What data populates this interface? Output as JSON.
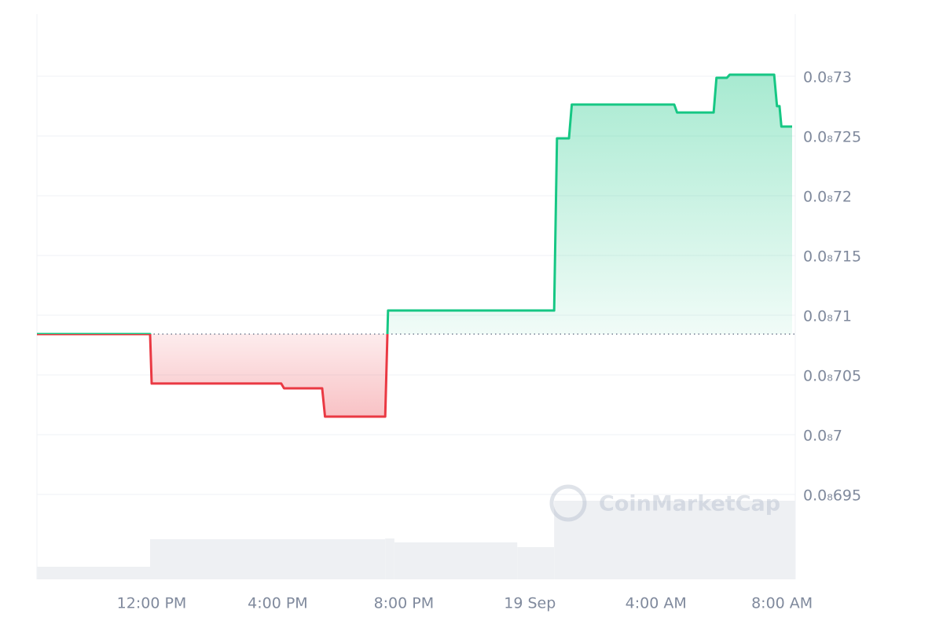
{
  "chart_data": {
    "type": "baseline-line",
    "x": [
      8.36,
      11.95,
      12.0,
      16.11,
      16.2,
      17.41,
      17.5,
      19.41,
      19.5,
      24.77,
      24.86,
      25.24,
      25.33,
      28.58,
      28.67,
      29.83,
      29.92,
      30.25,
      30.34,
      31.75,
      31.84,
      31.92,
      31.98,
      32.32
    ],
    "values": [
      7.0842e-10,
      7.0842e-10,
      7.0428e-10,
      7.0428e-10,
      7.0388e-10,
      7.0388e-10,
      7.0151e-10,
      7.0151e-10,
      7.1039e-10,
      7.1039e-10,
      7.248e-10,
      7.248e-10,
      7.2763e-10,
      7.2763e-10,
      7.2697e-10,
      7.2697e-10,
      7.2987e-10,
      7.2987e-10,
      7.3013e-10,
      7.3013e-10,
      7.275e-10,
      7.275e-10,
      7.2579e-10,
      7.2579e-10
    ],
    "baseline": 7.0842e-10,
    "up_color": "#16c784",
    "down_color": "#ea3943",
    "xlim": [
      8.36,
      32.42
    ],
    "xticks": [
      {
        "value": 12,
        "label": "12:00 PM"
      },
      {
        "value": 16,
        "label": "4:00 PM"
      },
      {
        "value": 20,
        "label": "8:00 PM"
      },
      {
        "value": 24,
        "label": "19 Sep"
      },
      {
        "value": 28,
        "label": "4:00 AM"
      },
      {
        "value": 32,
        "label": "8:00 AM"
      }
    ],
    "ylim": [
      6.8789e-10,
      7.352e-10
    ],
    "yticks": [
      {
        "value": 6.95e-10,
        "label": "0.0₈695"
      },
      {
        "value": 7e-10,
        "label": "0.0₈7"
      },
      {
        "value": 7.05e-10,
        "label": "0.0₈705"
      },
      {
        "value": 7.1e-10,
        "label": "0.0₈71"
      },
      {
        "value": 7.15e-10,
        "label": "0.0₈715"
      },
      {
        "value": 7.2e-10,
        "label": "0.0₈72"
      },
      {
        "value": 7.25e-10,
        "label": "0.0₈725"
      },
      {
        "value": 7.3e-10,
        "label": "0.0₈73"
      }
    ],
    "grid": true,
    "volume": {
      "bins": [
        8.36,
        11.95,
        19.41,
        19.7,
        23.6,
        24.77,
        32.42
      ],
      "values": [
        16,
        51,
        52,
        47,
        41,
        100
      ],
      "y2lim": [
        0,
        719
      ],
      "color": "#eef0f3"
    },
    "watermark": "CoinMarketCap"
  }
}
